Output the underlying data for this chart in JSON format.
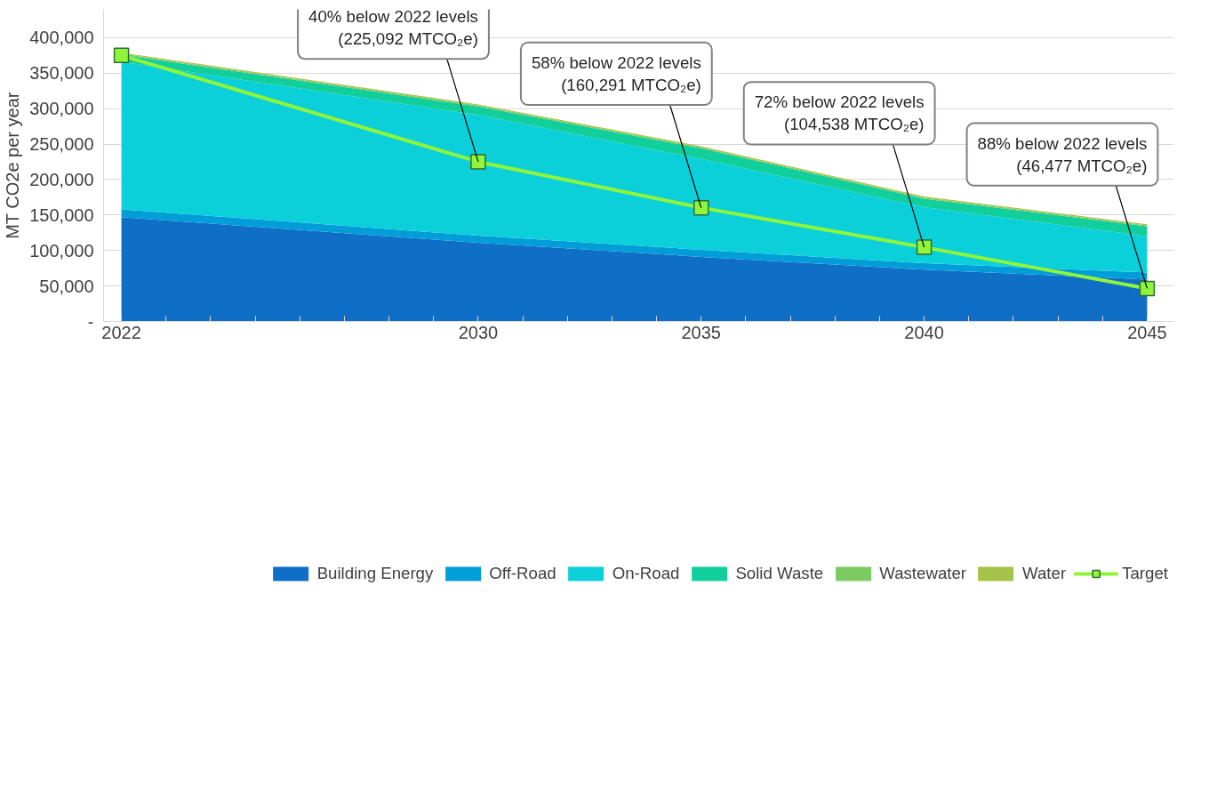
{
  "chart_data": {
    "type": "area",
    "stacked": true,
    "ylabel": "MT CO2e per year",
    "x": [
      2022,
      2030,
      2035,
      2040,
      2045
    ],
    "xlim": [
      2021.6,
      2045.6
    ],
    "xticks": [
      2022,
      {
        "value": 2023,
        "label": null
      },
      {
        "value": 2024,
        "label": null
      },
      {
        "value": 2025,
        "label": null
      },
      {
        "value": 2026,
        "label": null
      },
      {
        "value": 2027,
        "label": null
      },
      {
        "value": 2028,
        "label": null
      },
      {
        "value": 2029,
        "label": null
      },
      2030,
      {
        "value": 2031,
        "label": null
      },
      {
        "value": 2032,
        "label": null
      },
      {
        "value": 2033,
        "label": null
      },
      {
        "value": 2034,
        "label": null
      },
      2035,
      {
        "value": 2036,
        "label": null
      },
      {
        "value": 2037,
        "label": null
      },
      {
        "value": 2038,
        "label": null
      },
      {
        "value": 2039,
        "label": null
      },
      2040,
      {
        "value": 2041,
        "label": null
      },
      {
        "value": 2042,
        "label": null
      },
      {
        "value": 2043,
        "label": null
      },
      {
        "value": 2044,
        "label": null
      },
      2045
    ],
    "ylim": [
      0,
      440000
    ],
    "yticks": [
      {
        "value": 0,
        "label": "-"
      },
      {
        "value": 50000,
        "label": "50,000"
      },
      {
        "value": 100000,
        "label": "100,000"
      },
      {
        "value": 150000,
        "label": "150,000"
      },
      {
        "value": 200000,
        "label": "200,000"
      },
      {
        "value": 250000,
        "label": "250,000"
      },
      {
        "value": 300000,
        "label": "300,000"
      },
      {
        "value": 350000,
        "label": "350,000"
      },
      {
        "value": 400000,
        "label": "400,000"
      }
    ],
    "grid": "y",
    "legend": "bottom",
    "series": [
      {
        "name": "Building Energy",
        "color": "#0f6fc6",
        "values": [
          147000,
          111000,
          91000,
          73000,
          59000
        ]
      },
      {
        "name": "Off-Road",
        "color": "#009dd9",
        "values": [
          11000,
          10000,
          10000,
          9000,
          10000
        ]
      },
      {
        "name": "On-Road",
        "color": "#0bd0d9",
        "values": [
          208000,
          170000,
          128000,
          79000,
          51000
        ]
      },
      {
        "name": "Solid Waste",
        "color": "#10cf9b",
        "values": [
          10000,
          12000,
          15000,
          12000,
          14000
        ]
      },
      {
        "name": "Wastewater",
        "color": "#7cca62",
        "values": [
          1500,
          1500,
          1500,
          1500,
          1500
        ]
      },
      {
        "name": "Water",
        "color": "#a5c249",
        "values": [
          1500,
          1500,
          1500,
          1500,
          1500
        ]
      },
      {
        "name": "Target",
        "type": "line",
        "marker": "square",
        "color": "#8ef53a",
        "values": [
          375000,
          225092,
          160291,
          104538,
          46477
        ]
      }
    ],
    "annotations": [
      {
        "text": "40% below 2022 levels\n(225,092 MTCO₂e)",
        "x": 2030,
        "y": 225092
      },
      {
        "text": "58% below 2022 levels\n(160,291 MTCO₂e)",
        "x": 2035,
        "y": 160291
      },
      {
        "text": "72% below 2022 levels\n(104,538 MTCO₂e)",
        "x": 2040,
        "y": 104538
      },
      {
        "text": "88% below 2022 levels\n(46,477 MTCO₂e)",
        "x": 2045,
        "y": 46477
      }
    ]
  }
}
